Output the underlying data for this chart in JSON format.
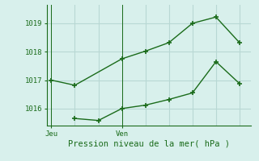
{
  "line1_x": [
    0,
    1,
    3,
    4,
    5,
    6,
    7,
    8
  ],
  "line1_y": [
    1017.0,
    1016.82,
    1017.75,
    1018.02,
    1018.32,
    1019.0,
    1019.22,
    1018.32
  ],
  "line2_x": [
    1,
    2,
    3,
    4,
    5,
    6,
    7,
    8
  ],
  "line2_y": [
    1015.65,
    1015.58,
    1016.0,
    1016.12,
    1016.32,
    1016.55,
    1017.65,
    1016.88
  ],
  "line_color": "#1a6b1a",
  "bg_color": "#d8f0ec",
  "grid_color": "#b8d8d4",
  "xlabel": "Pression niveau de la mer( hPa )",
  "yticks": [
    1016,
    1017,
    1018,
    1019
  ],
  "ylim": [
    1015.4,
    1019.65
  ],
  "xlim": [
    -0.2,
    8.5
  ],
  "jeu_x": 0,
  "ven_x": 3,
  "jeu_label": "Jeu",
  "ven_label": "Ven",
  "n_vert_grid": 9
}
